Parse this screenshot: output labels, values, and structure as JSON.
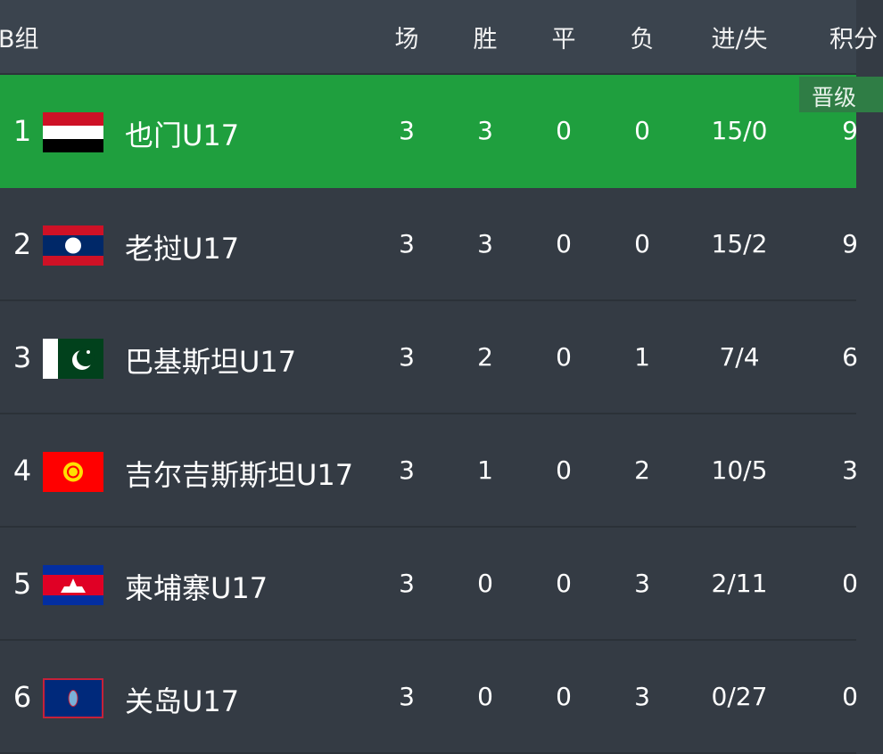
{
  "header": {
    "group": "B组",
    "columns": [
      "场",
      "胜",
      "平",
      "负",
      "进/失",
      "积分"
    ]
  },
  "qualified_label": "晋级",
  "colors": {
    "qualified": "#1f9f3e",
    "row": "#343b44",
    "header": "#3b444e"
  },
  "rows": [
    {
      "rank": "1",
      "flag": "yemen-flag",
      "team": "也门U17",
      "p": "3",
      "w": "3",
      "d": "0",
      "l": "0",
      "gd": "15/0",
      "pts": "9",
      "qualified": true
    },
    {
      "rank": "2",
      "flag": "laos-flag",
      "team": "老挝U17",
      "p": "3",
      "w": "3",
      "d": "0",
      "l": "0",
      "gd": "15/2",
      "pts": "9"
    },
    {
      "rank": "3",
      "flag": "pakistan-flag",
      "team": "巴基斯坦U17",
      "p": "3",
      "w": "2",
      "d": "0",
      "l": "1",
      "gd": "7/4",
      "pts": "6"
    },
    {
      "rank": "4",
      "flag": "kyrgyzstan-flag",
      "team": "吉尔吉斯斯坦U17",
      "p": "3",
      "w": "1",
      "d": "0",
      "l": "2",
      "gd": "10/5",
      "pts": "3"
    },
    {
      "rank": "5",
      "flag": "cambodia-flag",
      "team": "柬埔寨U17",
      "p": "3",
      "w": "0",
      "d": "0",
      "l": "3",
      "gd": "2/11",
      "pts": "0"
    },
    {
      "rank": "6",
      "flag": "guam-flag",
      "team": "关岛U17",
      "p": "3",
      "w": "0",
      "d": "0",
      "l": "3",
      "gd": "0/27",
      "pts": "0"
    }
  ]
}
